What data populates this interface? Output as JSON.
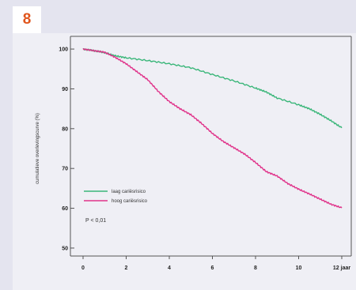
{
  "figure": {
    "number": "8"
  },
  "colors": {
    "badge_text": "#e0561d",
    "green": "#3ab679",
    "pink": "#e0338a",
    "background": "#e4e4ef"
  },
  "chart_data": {
    "type": "line",
    "title": "",
    "xlabel": "",
    "ylabel": "cumulatieve overlevingscurve (%)",
    "x_ticks": [
      "0",
      "2",
      "4",
      "6",
      "8",
      "10",
      "12 jaar"
    ],
    "y_ticks": [
      "50",
      "60",
      "70",
      "80",
      "90",
      "100"
    ],
    "xlim": [
      0,
      12
    ],
    "ylim": [
      48,
      102
    ],
    "grid": false,
    "legend_position": "lower-left",
    "annotation": "P < 0,01",
    "series": [
      {
        "name": "laag cariësrisico",
        "color": "#3ab679",
        "x": [
          0,
          0.5,
          1,
          1.5,
          2,
          3,
          4,
          5,
          6,
          7,
          8,
          8.5,
          9,
          10,
          10.5,
          11,
          11.5,
          12
        ],
        "y": [
          100,
          99.6,
          99.1,
          98.3,
          97.8,
          97.1,
          96.3,
          95.3,
          93.6,
          92.0,
          90.2,
          89.2,
          87.7,
          86.0,
          85.0,
          83.6,
          82.0,
          80.2
        ]
      },
      {
        "name": "hoog cariësrisico",
        "color": "#e0338a",
        "x": [
          0,
          0.5,
          1,
          1.5,
          2,
          2.5,
          3,
          3.5,
          4,
          4.5,
          5,
          5.5,
          6,
          6.5,
          7,
          7.5,
          8,
          8.5,
          9,
          9.5,
          10,
          10.5,
          11,
          11.5,
          12
        ],
        "y": [
          100,
          99.6,
          99.2,
          97.9,
          96.3,
          94.3,
          92.3,
          89.3,
          86.8,
          85.0,
          83.5,
          81.3,
          78.8,
          76.8,
          75.2,
          73.6,
          71.5,
          69.2,
          68.1,
          66.2,
          64.8,
          63.6,
          62.3,
          61.0,
          60.1
        ]
      }
    ]
  }
}
